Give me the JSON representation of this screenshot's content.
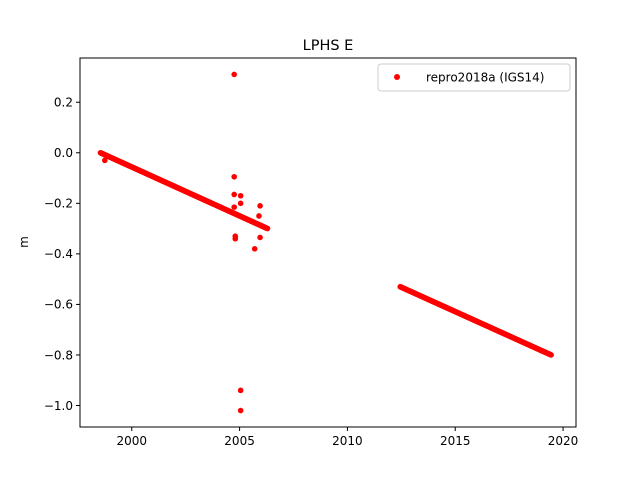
{
  "chart_data": {
    "type": "scatter",
    "title": "LPHS E",
    "xlabel": "",
    "ylabel": "m",
    "xlim": [
      1997.6,
      2020.6
    ],
    "ylim": [
      -1.085,
      0.375
    ],
    "xticks": [
      2000,
      2005,
      2010,
      2015,
      2020
    ],
    "xtick_labels": [
      "2000",
      "2005",
      "2010",
      "2015",
      "2020"
    ],
    "yticks": [
      0.2,
      0.0,
      -0.2,
      -0.4,
      -0.6,
      -0.8,
      -1.0
    ],
    "ytick_labels": [
      "0.2",
      "0.0",
      "−0.2",
      "−0.4",
      "−0.6",
      "−0.8",
      "−1.0"
    ],
    "grid": false,
    "legend": {
      "position": "top-right",
      "entries": [
        "repro2018a (IGS14)"
      ]
    },
    "series_color": "#ff0000",
    "series": [
      {
        "name": "repro2018a (IGS14)",
        "segments": [
          {
            "x_start": 1998.55,
            "x_end": 2006.3,
            "y_start": 0.0,
            "y_end": -0.3
          },
          {
            "x_start": 2012.45,
            "x_end": 2019.45,
            "y_start": -0.53,
            "y_end": -0.8
          }
        ],
        "outliers": [
          {
            "x": 1998.75,
            "y": -0.03
          },
          {
            "x": 2004.75,
            "y": 0.31
          },
          {
            "x": 2004.75,
            "y": -0.095
          },
          {
            "x": 2004.75,
            "y": -0.165
          },
          {
            "x": 2004.75,
            "y": -0.215
          },
          {
            "x": 2004.8,
            "y": -0.33
          },
          {
            "x": 2004.8,
            "y": -0.34
          },
          {
            "x": 2005.05,
            "y": -0.17
          },
          {
            "x": 2005.05,
            "y": -0.2
          },
          {
            "x": 2005.05,
            "y": -0.94
          },
          {
            "x": 2005.05,
            "y": -1.02
          },
          {
            "x": 2005.7,
            "y": -0.38
          },
          {
            "x": 2005.9,
            "y": -0.25
          },
          {
            "x": 2005.95,
            "y": -0.21
          },
          {
            "x": 2005.95,
            "y": -0.335
          }
        ]
      }
    ]
  }
}
